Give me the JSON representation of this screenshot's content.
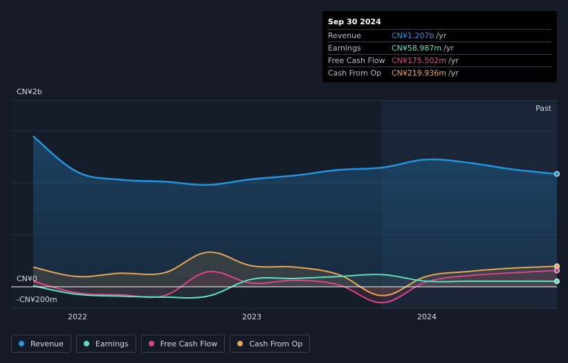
{
  "tooltip": {
    "date": "Sep 30 2024",
    "rows": [
      {
        "label": "Revenue",
        "value": "CN¥1.207b",
        "unit": "/yr",
        "color": "#2394df"
      },
      {
        "label": "Earnings",
        "value": "CN¥58.987m",
        "unit": "/yr",
        "color": "#5ce1c4"
      },
      {
        "label": "Free Cash Flow",
        "value": "CN¥175.502m",
        "unit": "/yr",
        "color": "#d9478b"
      },
      {
        "label": "Cash From Op",
        "value": "CN¥219.936m",
        "unit": "/yr",
        "color": "#e8a658"
      }
    ]
  },
  "legend": [
    {
      "label": "Revenue",
      "color": "#2394df"
    },
    {
      "label": "Earnings",
      "color": "#5ce1c4"
    },
    {
      "label": "Free Cash Flow",
      "color": "#d9478b"
    },
    {
      "label": "Cash From Op",
      "color": "#e8a658"
    }
  ],
  "chart_data": {
    "type": "line",
    "y_tick_labels": [
      "CN¥2b",
      "CN¥0",
      "-CN¥200m"
    ],
    "x_tick_labels": [
      "2022",
      "2023",
      "2024"
    ],
    "past_label": "Past",
    "ylim": [
      -200,
      2000
    ],
    "y_unit": "CN¥m",
    "x": [
      "2021-09-30",
      "2021-12-31",
      "2022-03-31",
      "2022-06-30",
      "2022-09-30",
      "2022-12-31",
      "2023-03-31",
      "2023-06-30",
      "2023-09-30",
      "2023-12-31",
      "2024-03-31",
      "2024-06-30",
      "2024-09-30"
    ],
    "series": [
      {
        "name": "Revenue",
        "color": "#2394df",
        "values": [
          1610,
          1230,
          1145,
          1125,
          1090,
          1150,
          1190,
          1250,
          1275,
          1360,
          1325,
          1255,
          1207
        ]
      },
      {
        "name": "Earnings",
        "color": "#5ce1c4",
        "values": [
          10,
          -80,
          -100,
          -110,
          -100,
          80,
          90,
          110,
          130,
          60,
          60,
          60,
          59
        ]
      },
      {
        "name": "Free Cash Flow",
        "color": "#d9478b",
        "values": [
          60,
          -65,
          -85,
          -95,
          160,
          40,
          70,
          20,
          -170,
          50,
          120,
          150,
          175
        ]
      },
      {
        "name": "Cash From Op",
        "color": "#e8a658",
        "values": [
          210,
          110,
          145,
          150,
          370,
          225,
          210,
          130,
          -95,
          110,
          165,
          200,
          220
        ]
      }
    ]
  }
}
